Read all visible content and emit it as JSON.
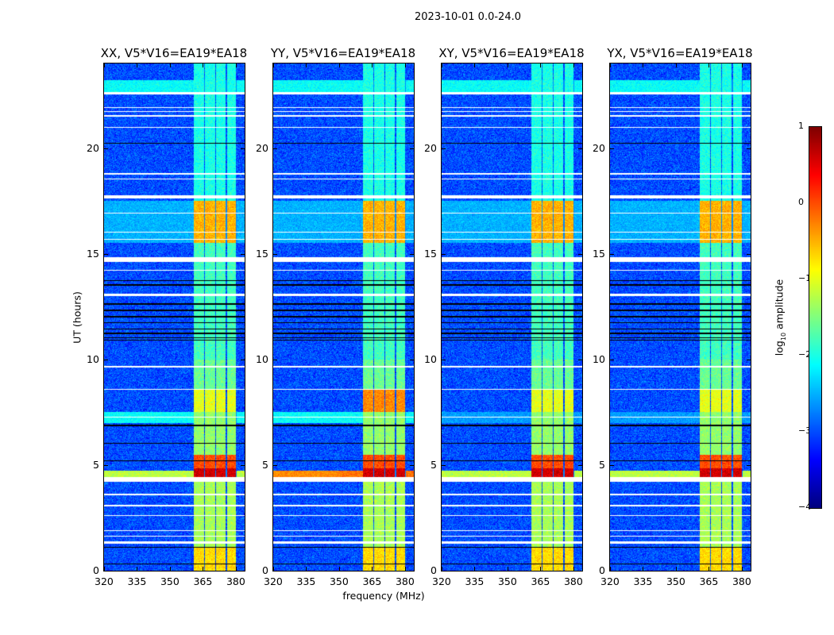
{
  "suptitle": "2023-10-01 0.0-24.0",
  "chart_data": {
    "type": "heatmap",
    "title": "2023-10-01 0.0-24.0",
    "xlabel": "frequency (MHz)",
    "ylabel": "UT (hours)",
    "xlim": [
      320,
      384
    ],
    "ylim": [
      0,
      24
    ],
    "xticks": [
      320,
      335,
      350,
      365,
      380
    ],
    "yticks": [
      0,
      5,
      10,
      15,
      20
    ],
    "colorbar": {
      "label_prefix": "log",
      "label_sub": "10",
      "label_suffix": " amplitude",
      "range": [
        -4,
        1
      ],
      "ticks": [
        1,
        0,
        -1,
        -2,
        -3,
        -4
      ],
      "tick_labels": [
        "1",
        "0",
        "−1",
        "−2",
        "−3",
        "−4"
      ],
      "colormap": "jet"
    },
    "panels": [
      {
        "title": "XX, V5*V16=EA19*EA18",
        "pol": "XX"
      },
      {
        "title": "YY, V5*V16=EA19*EA18",
        "pol": "YY"
      },
      {
        "title": "XY, V5*V16=EA19*EA18",
        "pol": "XY"
      },
      {
        "title": "YX, V5*V16=EA19*EA18",
        "pol": "YX"
      }
    ],
    "background_log_amp": -3.0,
    "rfi_subbands_mhz": [
      [
        361,
        365.5
      ],
      [
        366,
        370.5
      ],
      [
        371,
        375.5
      ],
      [
        376,
        380
      ]
    ],
    "band_levels": [
      {
        "t": [
          0,
          1.1
        ],
        "v": -0.7
      },
      {
        "t": [
          1.1,
          4.3
        ],
        "v": -1.3
      },
      {
        "t": [
          4.4,
          4.85
        ],
        "v": 0.6
      },
      {
        "t": [
          4.85,
          5.5
        ],
        "v": 0.0
      },
      {
        "t": [
          5.5,
          7.5
        ],
        "v": -1.4
      },
      {
        "t": [
          7.5,
          8.6
        ],
        "v": -1.0,
        "YY": -0.3
      },
      {
        "t": [
          8.6,
          10.0
        ],
        "v": -1.6
      },
      {
        "t": [
          10.0,
          15.5
        ],
        "v": -1.8
      },
      {
        "t": [
          15.5,
          17.5
        ],
        "v": -0.5
      },
      {
        "t": [
          17.5,
          24
        ],
        "v": -2.0
      }
    ],
    "broadband_stripes": [
      {
        "t": [
          4.45,
          4.75
        ],
        "v": -1.2,
        "YY": -0.3
      },
      {
        "t": [
          7.0,
          7.5
        ],
        "v": -2.1,
        "XY": -2.6,
        "YX": -2.6
      },
      {
        "t": [
          22.6,
          23.2
        ],
        "v": -2.1
      },
      {
        "t": [
          15.5,
          17.5
        ],
        "v": -2.5
      }
    ],
    "flagged_hours": [
      [
        22.55,
        22.65
      ],
      [
        21.9,
        21.95
      ],
      [
        21.7,
        21.75
      ],
      [
        21.5,
        21.55
      ],
      [
        20.95,
        21.0
      ],
      [
        18.75,
        18.8
      ],
      [
        18.5,
        18.55
      ],
      [
        17.6,
        17.75
      ],
      [
        16.9,
        16.95
      ],
      [
        16.0,
        16.05
      ],
      [
        15.65,
        15.7
      ],
      [
        14.6,
        14.85
      ],
      [
        14.2,
        14.25
      ],
      [
        13.0,
        13.1
      ],
      [
        9.6,
        9.7
      ],
      [
        8.55,
        8.6
      ],
      [
        7.25,
        7.3
      ],
      [
        4.2,
        4.45
      ],
      [
        3.58,
        3.63
      ],
      [
        3.05,
        3.1
      ],
      [
        2.58,
        2.63
      ],
      [
        1.88,
        1.92
      ],
      [
        1.63,
        1.67
      ],
      [
        1.28,
        1.4
      ]
    ],
    "dropout_hours": [
      [
        20.2,
        20.25
      ],
      [
        13.7,
        13.75
      ],
      [
        13.5,
        13.55
      ],
      [
        12.6,
        12.65
      ],
      [
        12.3,
        12.35
      ],
      [
        12.0,
        12.05
      ],
      [
        11.7,
        11.75
      ],
      [
        11.4,
        11.45
      ],
      [
        11.2,
        11.25
      ],
      [
        11.0,
        11.05
      ],
      [
        10.9,
        10.93
      ],
      [
        6.85,
        6.9
      ],
      [
        6.0,
        6.05
      ],
      [
        5.2,
        5.23
      ],
      [
        1.08,
        1.12
      ],
      [
        0.3,
        0.35
      ]
    ]
  }
}
